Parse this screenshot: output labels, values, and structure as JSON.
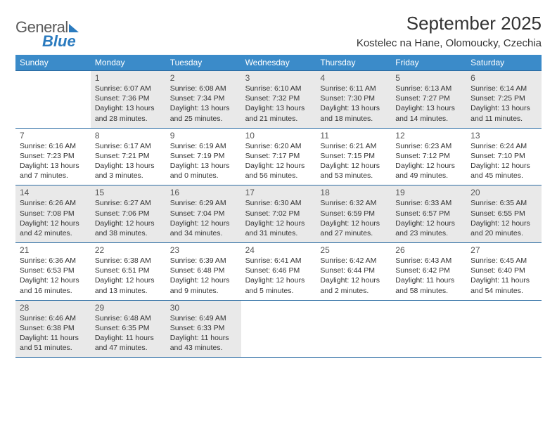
{
  "logo": {
    "text_general": "General",
    "text_blue": "Blue",
    "color": "#2b7bbf"
  },
  "title": "September 2025",
  "location": "Kostelec na Hane, Olomoucky, Czechia",
  "weekday_header_bg": "#3b8bc9",
  "rule_color": "#2b6ca3",
  "shaded_bg": "#e9e9e9",
  "title_fontsize": 26,
  "location_fontsize": 15,
  "weekday_fontsize": 12,
  "daynum_fontsize": 12,
  "detail_fontsize": 10.5,
  "weekdays": [
    "Sunday",
    "Monday",
    "Tuesday",
    "Wednesday",
    "Thursday",
    "Friday",
    "Saturday"
  ],
  "weeks": [
    {
      "shaded": true,
      "days": [
        {
          "num": "",
          "sunrise": "",
          "sunset": "",
          "daylight": ""
        },
        {
          "num": "1",
          "sunrise": "Sunrise: 6:07 AM",
          "sunset": "Sunset: 7:36 PM",
          "daylight": "Daylight: 13 hours and 28 minutes."
        },
        {
          "num": "2",
          "sunrise": "Sunrise: 6:08 AM",
          "sunset": "Sunset: 7:34 PM",
          "daylight": "Daylight: 13 hours and 25 minutes."
        },
        {
          "num": "3",
          "sunrise": "Sunrise: 6:10 AM",
          "sunset": "Sunset: 7:32 PM",
          "daylight": "Daylight: 13 hours and 21 minutes."
        },
        {
          "num": "4",
          "sunrise": "Sunrise: 6:11 AM",
          "sunset": "Sunset: 7:30 PM",
          "daylight": "Daylight: 13 hours and 18 minutes."
        },
        {
          "num": "5",
          "sunrise": "Sunrise: 6:13 AM",
          "sunset": "Sunset: 7:27 PM",
          "daylight": "Daylight: 13 hours and 14 minutes."
        },
        {
          "num": "6",
          "sunrise": "Sunrise: 6:14 AM",
          "sunset": "Sunset: 7:25 PM",
          "daylight": "Daylight: 13 hours and 11 minutes."
        }
      ]
    },
    {
      "shaded": false,
      "days": [
        {
          "num": "7",
          "sunrise": "Sunrise: 6:16 AM",
          "sunset": "Sunset: 7:23 PM",
          "daylight": "Daylight: 13 hours and 7 minutes."
        },
        {
          "num": "8",
          "sunrise": "Sunrise: 6:17 AM",
          "sunset": "Sunset: 7:21 PM",
          "daylight": "Daylight: 13 hours and 3 minutes."
        },
        {
          "num": "9",
          "sunrise": "Sunrise: 6:19 AM",
          "sunset": "Sunset: 7:19 PM",
          "daylight": "Daylight: 13 hours and 0 minutes."
        },
        {
          "num": "10",
          "sunrise": "Sunrise: 6:20 AM",
          "sunset": "Sunset: 7:17 PM",
          "daylight": "Daylight: 12 hours and 56 minutes."
        },
        {
          "num": "11",
          "sunrise": "Sunrise: 6:21 AM",
          "sunset": "Sunset: 7:15 PM",
          "daylight": "Daylight: 12 hours and 53 minutes."
        },
        {
          "num": "12",
          "sunrise": "Sunrise: 6:23 AM",
          "sunset": "Sunset: 7:12 PM",
          "daylight": "Daylight: 12 hours and 49 minutes."
        },
        {
          "num": "13",
          "sunrise": "Sunrise: 6:24 AM",
          "sunset": "Sunset: 7:10 PM",
          "daylight": "Daylight: 12 hours and 45 minutes."
        }
      ]
    },
    {
      "shaded": true,
      "days": [
        {
          "num": "14",
          "sunrise": "Sunrise: 6:26 AM",
          "sunset": "Sunset: 7:08 PM",
          "daylight": "Daylight: 12 hours and 42 minutes."
        },
        {
          "num": "15",
          "sunrise": "Sunrise: 6:27 AM",
          "sunset": "Sunset: 7:06 PM",
          "daylight": "Daylight: 12 hours and 38 minutes."
        },
        {
          "num": "16",
          "sunrise": "Sunrise: 6:29 AM",
          "sunset": "Sunset: 7:04 PM",
          "daylight": "Daylight: 12 hours and 34 minutes."
        },
        {
          "num": "17",
          "sunrise": "Sunrise: 6:30 AM",
          "sunset": "Sunset: 7:02 PM",
          "daylight": "Daylight: 12 hours and 31 minutes."
        },
        {
          "num": "18",
          "sunrise": "Sunrise: 6:32 AM",
          "sunset": "Sunset: 6:59 PM",
          "daylight": "Daylight: 12 hours and 27 minutes."
        },
        {
          "num": "19",
          "sunrise": "Sunrise: 6:33 AM",
          "sunset": "Sunset: 6:57 PM",
          "daylight": "Daylight: 12 hours and 23 minutes."
        },
        {
          "num": "20",
          "sunrise": "Sunrise: 6:35 AM",
          "sunset": "Sunset: 6:55 PM",
          "daylight": "Daylight: 12 hours and 20 minutes."
        }
      ]
    },
    {
      "shaded": false,
      "days": [
        {
          "num": "21",
          "sunrise": "Sunrise: 6:36 AM",
          "sunset": "Sunset: 6:53 PM",
          "daylight": "Daylight: 12 hours and 16 minutes."
        },
        {
          "num": "22",
          "sunrise": "Sunrise: 6:38 AM",
          "sunset": "Sunset: 6:51 PM",
          "daylight": "Daylight: 12 hours and 13 minutes."
        },
        {
          "num": "23",
          "sunrise": "Sunrise: 6:39 AM",
          "sunset": "Sunset: 6:48 PM",
          "daylight": "Daylight: 12 hours and 9 minutes."
        },
        {
          "num": "24",
          "sunrise": "Sunrise: 6:41 AM",
          "sunset": "Sunset: 6:46 PM",
          "daylight": "Daylight: 12 hours and 5 minutes."
        },
        {
          "num": "25",
          "sunrise": "Sunrise: 6:42 AM",
          "sunset": "Sunset: 6:44 PM",
          "daylight": "Daylight: 12 hours and 2 minutes."
        },
        {
          "num": "26",
          "sunrise": "Sunrise: 6:43 AM",
          "sunset": "Sunset: 6:42 PM",
          "daylight": "Daylight: 11 hours and 58 minutes."
        },
        {
          "num": "27",
          "sunrise": "Sunrise: 6:45 AM",
          "sunset": "Sunset: 6:40 PM",
          "daylight": "Daylight: 11 hours and 54 minutes."
        }
      ]
    },
    {
      "shaded": true,
      "days": [
        {
          "num": "28",
          "sunrise": "Sunrise: 6:46 AM",
          "sunset": "Sunset: 6:38 PM",
          "daylight": "Daylight: 11 hours and 51 minutes."
        },
        {
          "num": "29",
          "sunrise": "Sunrise: 6:48 AM",
          "sunset": "Sunset: 6:35 PM",
          "daylight": "Daylight: 11 hours and 47 minutes."
        },
        {
          "num": "30",
          "sunrise": "Sunrise: 6:49 AM",
          "sunset": "Sunset: 6:33 PM",
          "daylight": "Daylight: 11 hours and 43 minutes."
        },
        {
          "num": "",
          "sunrise": "",
          "sunset": "",
          "daylight": ""
        },
        {
          "num": "",
          "sunrise": "",
          "sunset": "",
          "daylight": ""
        },
        {
          "num": "",
          "sunrise": "",
          "sunset": "",
          "daylight": ""
        },
        {
          "num": "",
          "sunrise": "",
          "sunset": "",
          "daylight": ""
        }
      ]
    }
  ]
}
